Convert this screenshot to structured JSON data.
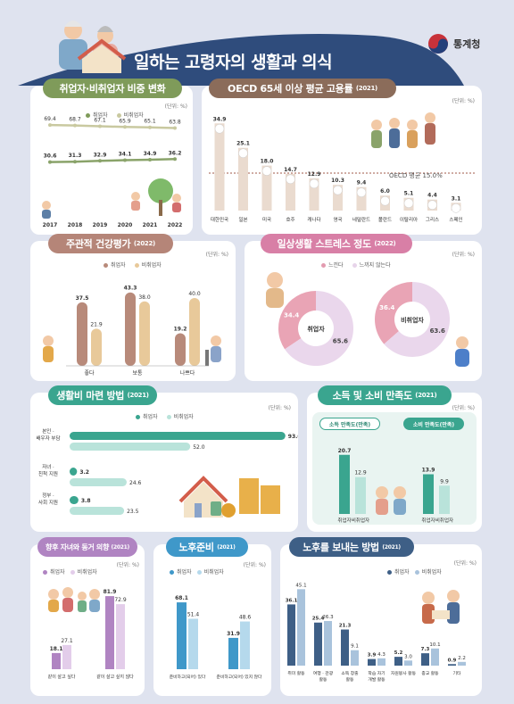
{
  "header": {
    "title": "일하는 고령자의 생활과 의식",
    "org": "통계청"
  },
  "colors": {
    "employed": "#6fae87",
    "unemployed": "#c9c9a0",
    "brown": "#b88a7a",
    "tan": "#e8c99a",
    "pink": "#e7d4ea",
    "pinkDark": "#c79fc9",
    "teal": "#3aa58f",
    "tealLight": "#b9e3da",
    "blue": "#3e5f86",
    "blueLight": "#a9c3dc"
  },
  "panels": {
    "employment_trend": {
      "title": "취업자·비취업자 비중 변화",
      "unit": "(단위: %)",
      "legend": [
        "취업자",
        "비취업자"
      ]
    },
    "oecd": {
      "title": "OECD 65세 이상 평균 고용률",
      "title_year": "(2021)",
      "unit": "(단위: %)",
      "avg_label": "OECD 평균 15.0%"
    },
    "health": {
      "title": "주관적 건강평가",
      "title_year": "(2022)",
      "unit": "(단위: %)",
      "legend": [
        "취업자",
        "비취업자"
      ]
    },
    "stress": {
      "title": "일상생활 스트레스 정도",
      "title_year": "(2022)",
      "unit": "(단위: %)",
      "legend": [
        "느낀다",
        "느끼지 않는다"
      ]
    },
    "living": {
      "title": "생활비 마련 방법",
      "title_year": "(2021)",
      "unit": "(단위: %)",
      "legend": [
        "취업자",
        "비취업자"
      ]
    },
    "income": {
      "title": "소득 및 소비 만족도",
      "title_year": "(2021)",
      "unit": "(단위: %)",
      "sub1": "소득 만족도(만족)",
      "sub2": "소비 만족도(만족)",
      "xlabels": [
        "취업자",
        "비취업자"
      ]
    },
    "children": {
      "title": "향후 자녀와 동거 의향",
      "title_year": "(2021)",
      "unit": "(단위: %)",
      "legend": [
        "취업자",
        "비취업자"
      ]
    },
    "retire": {
      "title": "노후준비",
      "title_year": "(2021)",
      "unit": "(단위: %)",
      "legend": [
        "취업자",
        "비취업자"
      ]
    },
    "leisure": {
      "title": "노후를 보내는 방법",
      "title_year": "(2021)",
      "unit": "(단위: %)",
      "legend": [
        "취업자",
        "비취업자"
      ]
    }
  },
  "chart_data": [
    {
      "id": "employment_trend",
      "type": "line",
      "x": [
        "2017",
        "2018",
        "2019",
        "2020",
        "2021",
        "2022"
      ],
      "series": [
        {
          "name": "취업자",
          "values": [
            30.6,
            31.3,
            32.9,
            34.1,
            34.9,
            36.2
          ]
        },
        {
          "name": "비취업자",
          "values": [
            69.4,
            68.7,
            67.1,
            65.9,
            65.1,
            63.8
          ]
        }
      ]
    },
    {
      "id": "oecd",
      "type": "bar",
      "categories": [
        "대한민국",
        "일본",
        "미국",
        "호주",
        "캐나다",
        "영국",
        "네덜란드",
        "폴란드",
        "이탈리아",
        "그리스",
        "스페인"
      ],
      "values": [
        34.9,
        25.1,
        18.0,
        14.7,
        12.9,
        10.3,
        9.4,
        6.0,
        5.1,
        4.4,
        3.1
      ],
      "value_labels": [
        "34.9",
        "25.1",
        "18.0",
        "14.7",
        "12.9",
        "10.3",
        "9.4",
        "6.0",
        "5.1",
        "4.4",
        "3.1"
      ],
      "reference_line": 15.0
    },
    {
      "id": "health",
      "type": "bar",
      "categories": [
        "좋다",
        "보통",
        "나쁘다"
      ],
      "series": [
        {
          "name": "취업자",
          "values": [
            37.5,
            43.3,
            19.2
          ]
        },
        {
          "name": "비취업자",
          "values": [
            21.9,
            38.0,
            40.0
          ]
        }
      ]
    },
    {
      "id": "stress",
      "type": "pie",
      "groups": [
        {
          "name": "취업자",
          "slices": [
            {
              "name": "느낀다",
              "value": 34.4
            },
            {
              "name": "느끼지 않는다",
              "value": 65.6
            }
          ]
        },
        {
          "name": "비취업자",
          "slices": [
            {
              "name": "느낀다",
              "value": 36.4
            },
            {
              "name": "느끼지 않는다",
              "value": 63.6
            }
          ]
        }
      ]
    },
    {
      "id": "living",
      "type": "bar",
      "categories": [
        "본인 · 배우자 부담",
        "자녀 · 친척 지원",
        "정부 · 사회 지원"
      ],
      "series": [
        {
          "name": "취업자",
          "values": [
            93.0,
            3.2,
            3.8
          ]
        },
        {
          "name": "비취업자",
          "values": [
            52.0,
            24.6,
            23.5
          ]
        }
      ]
    },
    {
      "id": "income",
      "type": "bar",
      "groups": [
        {
          "name": "소득 만족도(만족)",
          "categories": [
            "취업자",
            "비취업자"
          ],
          "values": [
            20.7,
            12.9
          ]
        },
        {
          "name": "소비 만족도(만족)",
          "categories": [
            "취업자",
            "비취업자"
          ],
          "values": [
            13.9,
            9.9
          ]
        }
      ]
    },
    {
      "id": "children",
      "type": "bar",
      "categories": [
        "같이 살고 싶다",
        "같이 살고 싶지 않다"
      ],
      "series": [
        {
          "name": "취업자",
          "values": [
            18.1,
            81.9
          ]
        },
        {
          "name": "비취업자",
          "values": [
            27.1,
            72.9
          ]
        }
      ]
    },
    {
      "id": "retire",
      "type": "bar",
      "categories": [
        "준비하고(되어) 있다",
        "준비하고(되어) 있지 않다"
      ],
      "series": [
        {
          "name": "취업자",
          "values": [
            68.1,
            31.9
          ]
        },
        {
          "name": "비취업자",
          "values": [
            51.4,
            48.6
          ]
        }
      ]
    },
    {
      "id": "leisure",
      "type": "bar",
      "categories": [
        "취미 활동",
        "여행 · 관광 활동",
        "소득 창출 활동",
        "학습 자기 개발 활동",
        "자원봉사 활동",
        "종교 활동",
        "기타"
      ],
      "series": [
        {
          "name": "취업자",
          "values": [
            36.1,
            25.4,
            21.3,
            3.9,
            5.2,
            7.3,
            0.9
          ]
        },
        {
          "name": "비취업자",
          "values": [
            45.1,
            26.3,
            9.1,
            4.3,
            3.0,
            10.1,
            2.2
          ]
        }
      ]
    }
  ]
}
